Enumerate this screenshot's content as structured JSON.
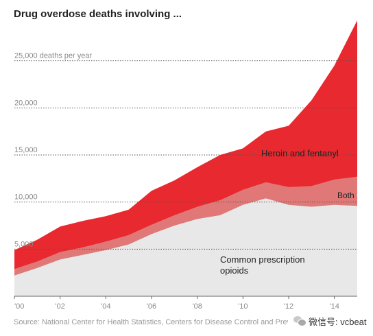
{
  "chart_data": {
    "type": "area",
    "title": "Drug overdose deaths involving ...",
    "unit_label": "deaths per year",
    "x": [
      2000,
      2001,
      2002,
      2003,
      2004,
      2005,
      2006,
      2007,
      2008,
      2009,
      2010,
      2011,
      2012,
      2013,
      2014,
      2015
    ],
    "xlim": [
      2000,
      2015
    ],
    "ylim": [
      0,
      30000
    ],
    "x_ticks": [
      {
        "value": 2000,
        "label": "'00"
      },
      {
        "value": 2002,
        "label": "'02"
      },
      {
        "value": 2004,
        "label": "'04"
      },
      {
        "value": 2006,
        "label": "'06"
      },
      {
        "value": 2008,
        "label": "'08"
      },
      {
        "value": 2010,
        "label": "'10"
      },
      {
        "value": 2012,
        "label": "'12"
      },
      {
        "value": 2014,
        "label": "'14"
      }
    ],
    "y_ticks": [
      {
        "value": 5000,
        "label": "5,000"
      },
      {
        "value": 10000,
        "label": "10,000"
      },
      {
        "value": 15000,
        "label": "15,000"
      },
      {
        "value": 20000,
        "label": "20,000"
      },
      {
        "value": 25000,
        "label": "25,000 deaths per year"
      }
    ],
    "grid": true,
    "stacked": true,
    "series": [
      {
        "name": "Common prescription opioids",
        "color": "#e8e8e8",
        "values": [
          2200,
          3000,
          3900,
          4400,
          4900,
          5500,
          6600,
          7500,
          8200,
          8600,
          9700,
          10400,
          9700,
          9500,
          9700,
          9600
        ]
      },
      {
        "name": "Both",
        "color": "#e07878",
        "values": [
          700,
          700,
          800,
          800,
          900,
          1000,
          1000,
          1100,
          1300,
          1600,
          1600,
          1700,
          1900,
          2200,
          2700,
          3100
        ]
      },
      {
        "name": "Heroin and fentanyl",
        "color": "#e8292f",
        "values": [
          2000,
          2300,
          2700,
          2800,
          2700,
          2700,
          3600,
          3700,
          4200,
          4800,
          4400,
          5400,
          6500,
          9100,
          12100,
          16600
        ]
      }
    ]
  },
  "source": "Source: National Center for Health Statistics, Centers for Disease Control and Prevention",
  "watermark": {
    "text": "微信号: vcbeat",
    "icon": "wechat-icon"
  }
}
